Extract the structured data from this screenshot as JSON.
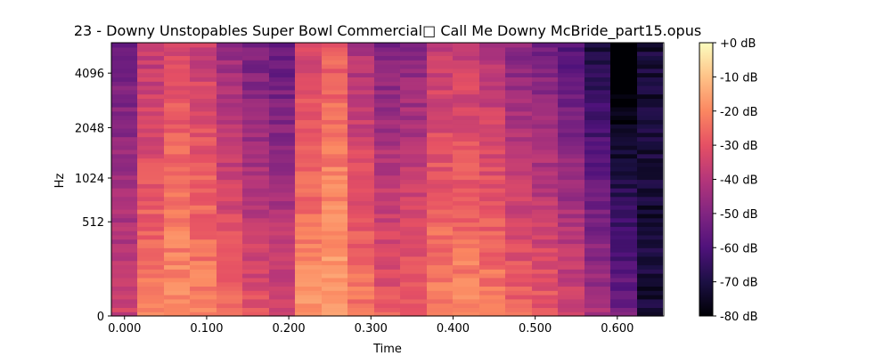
{
  "chart_data": {
    "type": "heatmap",
    "title": "23 - Downy Unstopables Super Bowl Commercial□ Call Me Downy McBride_part15.opus",
    "xlabel": "Time",
    "ylabel": "Hz",
    "x_ticks": [
      "0.000",
      "0.100",
      "0.200",
      "0.300",
      "0.400",
      "0.500",
      "0.600"
    ],
    "x_tick_values": [
      0.0,
      0.1,
      0.2,
      0.3,
      0.4,
      0.5,
      0.6
    ],
    "xlim": [
      -0.016,
      0.6566
    ],
    "y_ticks": [
      "0",
      "512",
      "1024",
      "2048",
      "4096"
    ],
    "y_tick_values": [
      0,
      512,
      1024,
      2048,
      4096
    ],
    "y_scale": "log",
    "colorbar": {
      "label_ticks": [
        "+0 dB",
        "-10 dB",
        "-20 dB",
        "-30 dB",
        "-40 dB",
        "-50 dB",
        "-60 dB",
        "-70 dB",
        "-80 dB"
      ],
      "range_db": [
        -80,
        0
      ]
    },
    "colormap_stops": [
      "#000004",
      "#1c1044",
      "#4f127b",
      "#812581",
      "#b5367a",
      "#e55064",
      "#fb8761",
      "#fec287",
      "#fcfdbf"
    ],
    "time_frames": [
      0.0,
      0.032,
      0.064,
      0.096,
      0.128,
      0.16,
      0.192,
      0.224,
      0.256,
      0.288,
      0.32,
      0.352,
      0.384,
      0.416,
      0.448,
      0.48,
      0.512,
      0.544,
      0.576,
      0.608,
      0.64
    ],
    "frame_levels_db": [
      -35,
      -22,
      -18,
      -20,
      -26,
      -30,
      -32,
      -18,
      -14,
      -22,
      -28,
      -26,
      -20,
      -19,
      -21,
      -26,
      -28,
      -33,
      -42,
      -52,
      -72
    ],
    "spectral_tilt_db": [
      -12,
      -10,
      -9,
      -10,
      -12,
      -14,
      -15,
      -10,
      -9,
      -12,
      -14,
      -14,
      -11,
      -11,
      -12,
      -14,
      -15,
      -16,
      -18,
      -22,
      -6
    ]
  }
}
